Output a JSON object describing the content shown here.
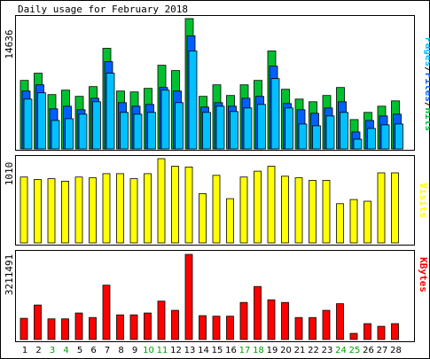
{
  "title": "Daily usage for February 2018",
  "colors": {
    "hits": "#00c030",
    "files": "#0060ff",
    "pages": "#00c0ff",
    "visits": "#ffff00",
    "kbytes": "#ff0000",
    "weekend_day_label": "#00a000",
    "weekday_label": "#000000"
  },
  "chart_data": [
    {
      "type": "bar",
      "title": "Daily usage for February 2018",
      "xlabel": "",
      "ylabel": "Pages/Files/Hits",
      "y_max_label": "14636",
      "ylim": [
        0,
        14636
      ],
      "grid": false,
      "categories": [
        "1",
        "2",
        "3",
        "4",
        "5",
        "6",
        "7",
        "8",
        "9",
        "10",
        "11",
        "12",
        "13",
        "14",
        "15",
        "16",
        "17",
        "18",
        "19",
        "20",
        "21",
        "22",
        "23",
        "24",
        "25",
        "26",
        "27",
        "28"
      ],
      "weekend_days": [
        "3",
        "4",
        "10",
        "11",
        "17",
        "18",
        "24",
        "25"
      ],
      "series": [
        {
          "name": "Hits",
          "values": [
            7700,
            8500,
            6100,
            6600,
            5900,
            7000,
            11300,
            6500,
            6400,
            6800,
            9400,
            8800,
            14636,
            5900,
            7200,
            6000,
            7200,
            7700,
            11000,
            6700,
            5600,
            5300,
            6000,
            6900,
            3300,
            4100,
            4800,
            5400
          ]
        },
        {
          "name": "Files",
          "values": [
            6500,
            7200,
            4500,
            4800,
            4400,
            5700,
            9800,
            5200,
            4800,
            5000,
            6900,
            6500,
            12700,
            4700,
            5200,
            4800,
            5700,
            5900,
            9300,
            5100,
            4400,
            4000,
            4600,
            5300,
            1900,
            3200,
            3700,
            3900
          ]
        },
        {
          "name": "Pages",
          "values": [
            5600,
            6300,
            3200,
            3400,
            3900,
            5300,
            8500,
            4100,
            3900,
            4100,
            6600,
            5200,
            11000,
            4100,
            4800,
            4200,
            4600,
            5000,
            7900,
            4600,
            2800,
            2600,
            3700,
            4100,
            1100,
            2300,
            2700,
            2800
          ]
        }
      ]
    },
    {
      "type": "bar",
      "title": "",
      "xlabel": "",
      "ylabel": "Visits",
      "y_max_label": "1010",
      "ylim": [
        0,
        1010
      ],
      "grid": false,
      "categories": [
        "1",
        "2",
        "3",
        "4",
        "5",
        "6",
        "7",
        "8",
        "9",
        "10",
        "11",
        "12",
        "13",
        "14",
        "15",
        "16",
        "17",
        "18",
        "19",
        "20",
        "21",
        "22",
        "23",
        "24",
        "25",
        "26",
        "27",
        "28"
      ],
      "series": [
        {
          "name": "Visits",
          "values": [
            790,
            760,
            770,
            740,
            790,
            780,
            830,
            830,
            770,
            830,
            1010,
            920,
            910,
            590,
            810,
            530,
            790,
            860,
            920,
            800,
            780,
            750,
            750,
            470,
            520,
            500,
            840,
            840
          ]
        }
      ]
    },
    {
      "type": "bar",
      "title": "",
      "xlabel": "",
      "ylabel": "KBytes",
      "y_max_label": "3211491",
      "ylim": [
        0,
        3211491
      ],
      "grid": false,
      "categories": [
        "1",
        "2",
        "3",
        "4",
        "5",
        "6",
        "7",
        "8",
        "9",
        "10",
        "11",
        "12",
        "13",
        "14",
        "15",
        "16",
        "17",
        "18",
        "19",
        "20",
        "21",
        "22",
        "23",
        "24",
        "25",
        "26",
        "27",
        "28"
      ],
      "series": [
        {
          "name": "KBytes",
          "values": [
            800000,
            1300000,
            780000,
            780000,
            1000000,
            830000,
            2050000,
            930000,
            930000,
            1000000,
            1450000,
            1100000,
            3211491,
            900000,
            880000,
            880000,
            1400000,
            2000000,
            1500000,
            1400000,
            830000,
            830000,
            1100000,
            1350000,
            230000,
            600000,
            500000,
            600000
          ]
        }
      ]
    }
  ]
}
